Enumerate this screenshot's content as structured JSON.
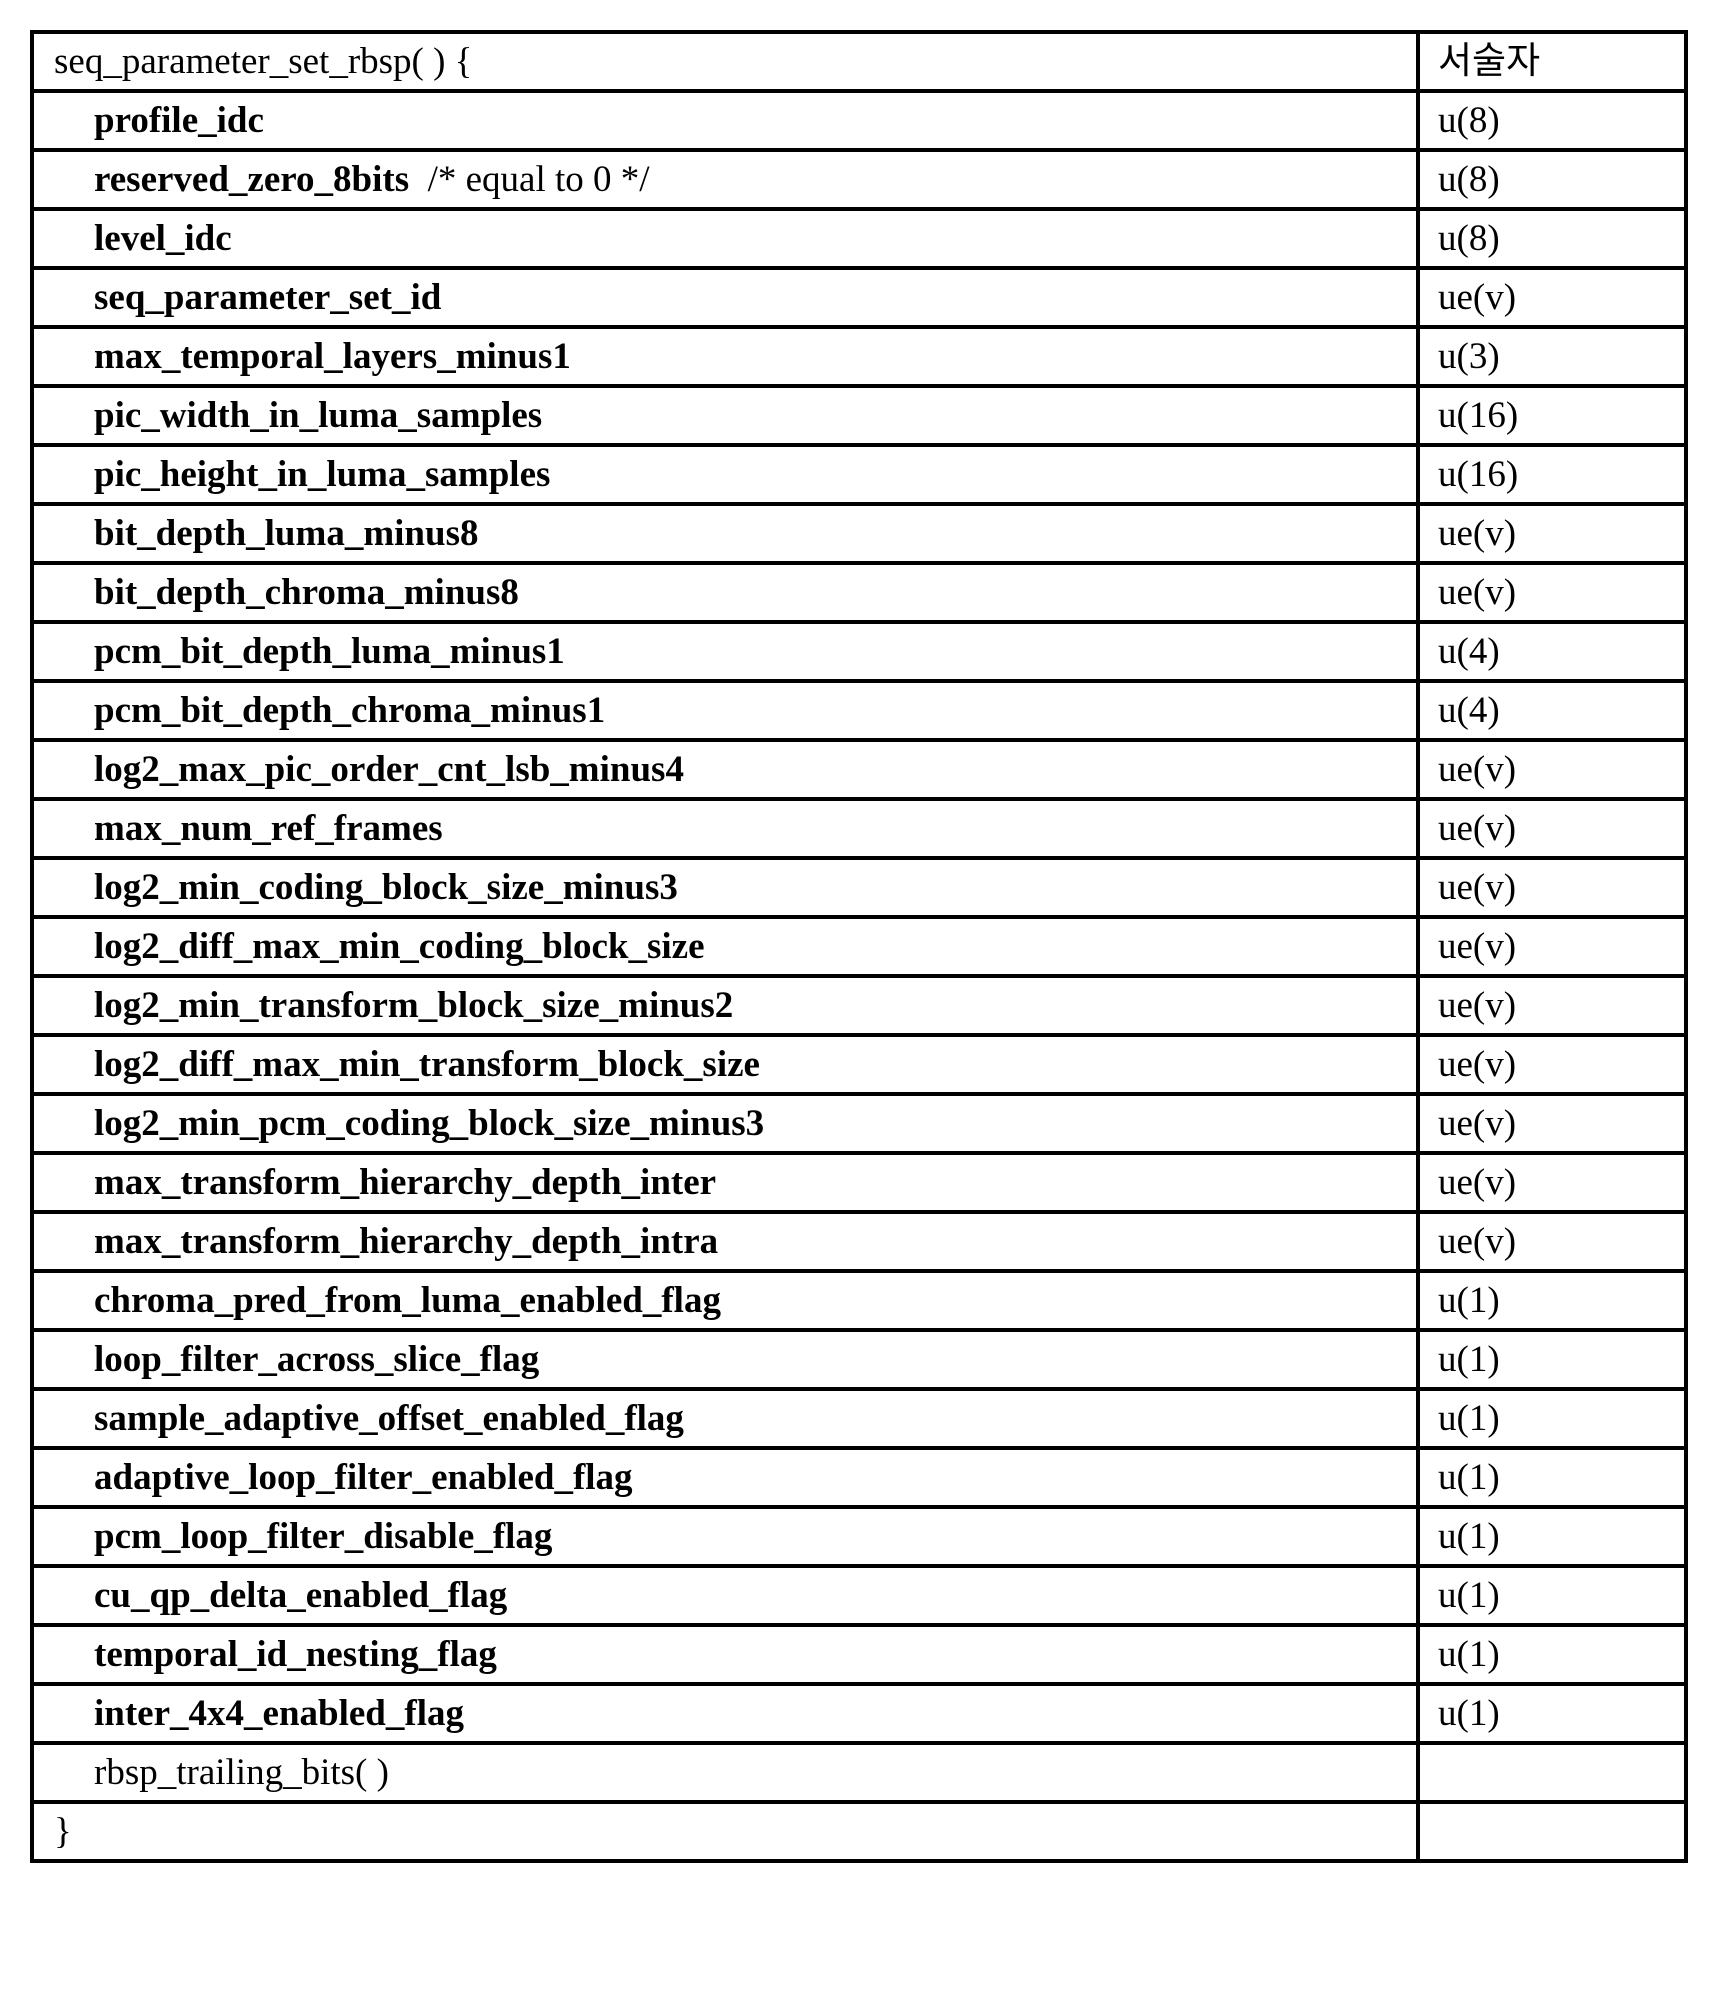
{
  "header": {
    "syntax": "seq_parameter_set_rbsp( ) {",
    "descriptor": "서술자"
  },
  "rows": [
    {
      "name": "profile_idc",
      "comment": "",
      "descriptor": "u(8)"
    },
    {
      "name": "reserved_zero_8bits",
      "comment": "/* equal to 0 */",
      "descriptor": "u(8)"
    },
    {
      "name": "level_idc",
      "comment": "",
      "descriptor": "u(8)"
    },
    {
      "name": "seq_parameter_set_id",
      "comment": "",
      "descriptor": "ue(v)"
    },
    {
      "name": "max_temporal_layers_minus1",
      "comment": "",
      "descriptor": "u(3)"
    },
    {
      "name": "pic_width_in_luma_samples",
      "comment": "",
      "descriptor": "u(16)"
    },
    {
      "name": "pic_height_in_luma_samples",
      "comment": "",
      "descriptor": "u(16)"
    },
    {
      "name": "bit_depth_luma_minus8",
      "comment": "",
      "descriptor": "ue(v)"
    },
    {
      "name": "bit_depth_chroma_minus8",
      "comment": "",
      "descriptor": "ue(v)"
    },
    {
      "name": "pcm_bit_depth_luma_minus1",
      "comment": "",
      "descriptor": "u(4)"
    },
    {
      "name": "pcm_bit_depth_chroma_minus1",
      "comment": "",
      "descriptor": "u(4)"
    },
    {
      "name": "log2_max_pic_order_cnt_lsb_minus4",
      "comment": "",
      "descriptor": "ue(v)"
    },
    {
      "name": "max_num_ref_frames",
      "comment": "",
      "descriptor": "ue(v)"
    },
    {
      "name": "log2_min_coding_block_size_minus3",
      "comment": "",
      "descriptor": "ue(v)"
    },
    {
      "name": "log2_diff_max_min_coding_block_size",
      "comment": "",
      "descriptor": "ue(v)"
    },
    {
      "name": "log2_min_transform_block_size_minus2",
      "comment": "",
      "descriptor": "ue(v)"
    },
    {
      "name": "log2_diff_max_min_transform_block_size",
      "comment": "",
      "descriptor": "ue(v)"
    },
    {
      "name": "log2_min_pcm_coding_block_size_minus3",
      "comment": "",
      "descriptor": "ue(v)"
    },
    {
      "name": "max_transform_hierarchy_depth_inter",
      "comment": "",
      "descriptor": "ue(v)"
    },
    {
      "name": "max_transform_hierarchy_depth_intra",
      "comment": "",
      "descriptor": "ue(v)"
    },
    {
      "name": "chroma_pred_from_luma_enabled_flag",
      "comment": "",
      "descriptor": "u(1)"
    },
    {
      "name": "loop_filter_across_slice_flag",
      "comment": "",
      "descriptor": "u(1)"
    },
    {
      "name": "sample_adaptive_offset_enabled_flag",
      "comment": "",
      "descriptor": "u(1)"
    },
    {
      "name": "adaptive_loop_filter_enabled_flag",
      "comment": "",
      "descriptor": "u(1)"
    },
    {
      "name": "pcm_loop_filter_disable_flag",
      "comment": "",
      "descriptor": "u(1)"
    },
    {
      "name": "cu_qp_delta_enabled_flag",
      "comment": "",
      "descriptor": "u(1)"
    },
    {
      "name": "temporal_id_nesting_flag",
      "comment": "",
      "descriptor": "u(1)"
    },
    {
      "name": "inter_4x4_enabled_flag",
      "comment": "",
      "descriptor": "u(1)"
    }
  ],
  "trailing": {
    "syntax": "rbsp_trailing_bits( )",
    "descriptor": ""
  },
  "closing": {
    "syntax": "}",
    "descriptor": ""
  }
}
